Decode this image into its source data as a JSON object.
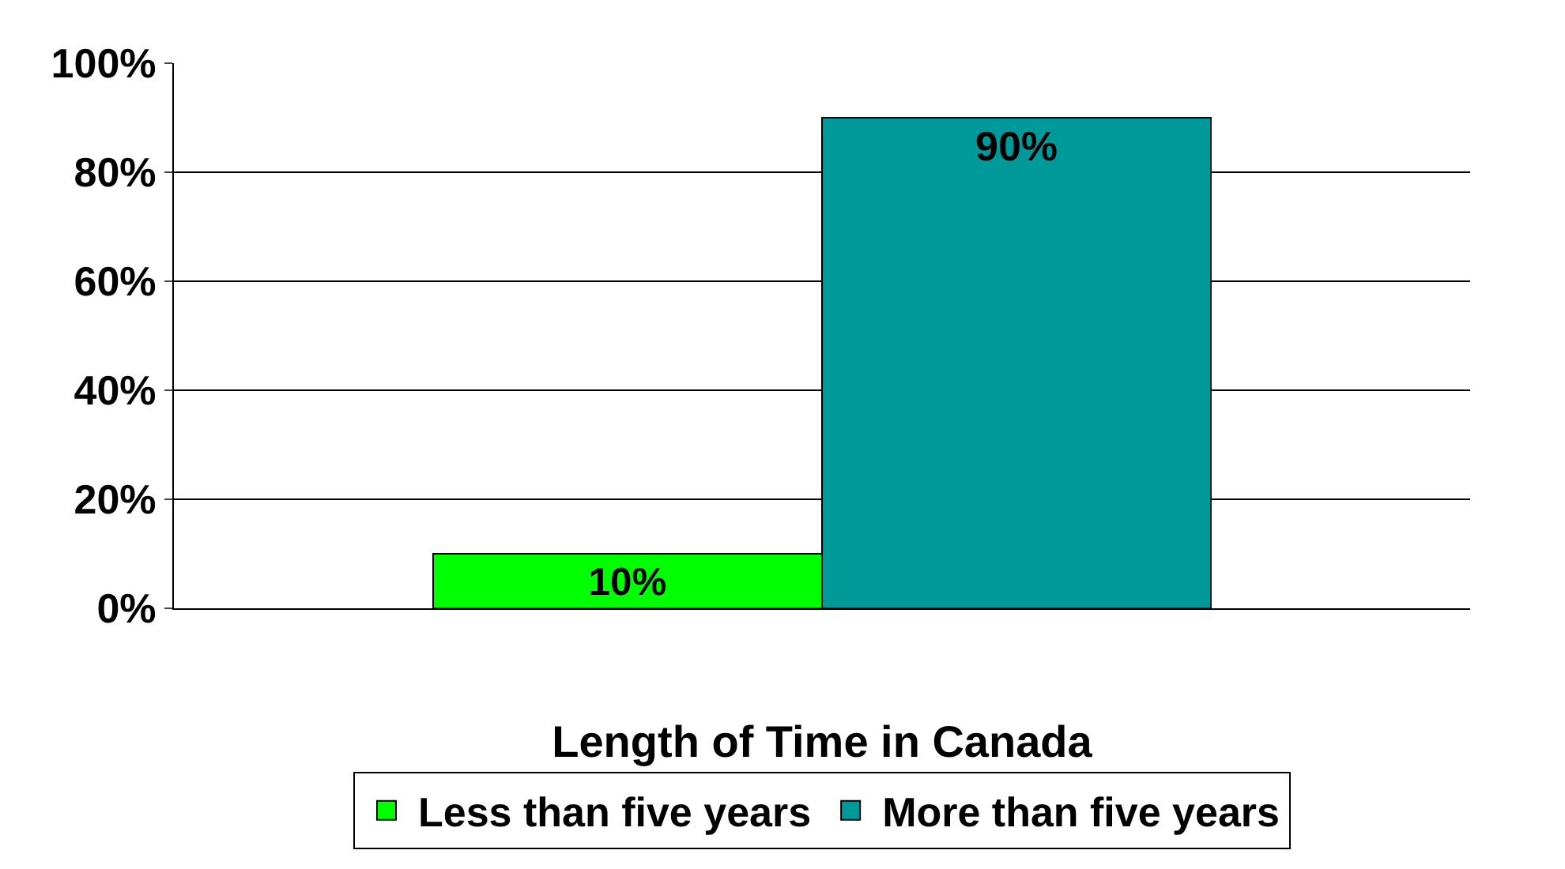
{
  "chart_data": {
    "type": "bar",
    "xlabel": "Length of Time in Canada",
    "categories": [
      null
    ],
    "series": [
      {
        "name": "Less than five years",
        "color": "#00ff00",
        "values": [
          10
        ],
        "value_labels": [
          "10%"
        ]
      },
      {
        "name": "More than five years",
        "color": "#009999",
        "values": [
          90
        ],
        "value_labels": [
          "90%"
        ]
      }
    ],
    "ylim": [
      0,
      100
    ],
    "yticks": [
      {
        "value": 0,
        "label": "0%"
      },
      {
        "value": 20,
        "label": "20%"
      },
      {
        "value": 40,
        "label": "40%"
      },
      {
        "value": 60,
        "label": "60%"
      },
      {
        "value": 80,
        "label": "80%"
      },
      {
        "value": 100,
        "label": "100%"
      }
    ],
    "grid": "y",
    "legend": "bottom"
  }
}
